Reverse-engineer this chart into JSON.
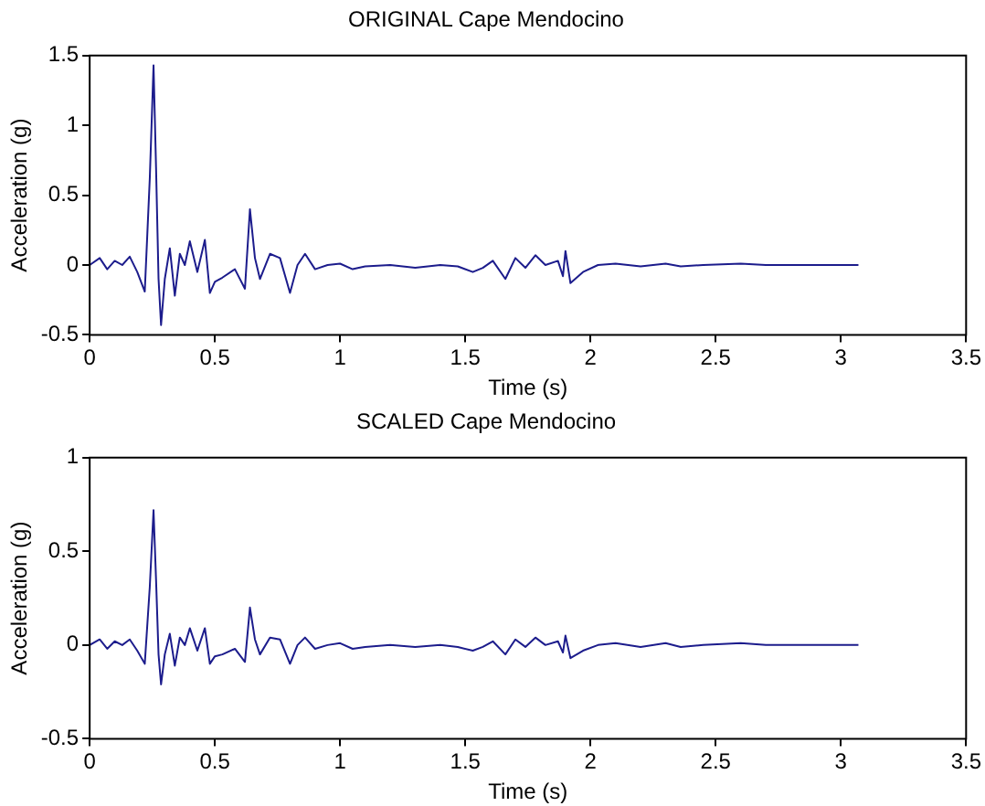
{
  "chart_data": [
    {
      "type": "line",
      "title": "ORIGINAL Cape Mendocino",
      "xlabel": "Time (s)",
      "ylabel": "Acceleration (g)",
      "xlim": [
        0,
        3.5
      ],
      "xticks": [
        0,
        0.5,
        1,
        1.5,
        2,
        2.5,
        3,
        3.5
      ],
      "ylim": [
        -0.5,
        1.5
      ],
      "yticks": [
        -0.5,
        0,
        0.5,
        1,
        1.5
      ],
      "marker": "none",
      "x": [
        0,
        0.04,
        0.07,
        0.1,
        0.13,
        0.16,
        0.19,
        0.22,
        0.24,
        0.255,
        0.265,
        0.275,
        0.285,
        0.3,
        0.32,
        0.34,
        0.36,
        0.38,
        0.4,
        0.43,
        0.46,
        0.48,
        0.5,
        0.53,
        0.58,
        0.62,
        0.64,
        0.66,
        0.68,
        0.72,
        0.76,
        0.8,
        0.83,
        0.86,
        0.9,
        0.95,
        1.0,
        1.05,
        1.1,
        1.2,
        1.3,
        1.4,
        1.47,
        1.53,
        1.57,
        1.61,
        1.66,
        1.7,
        1.74,
        1.78,
        1.82,
        1.87,
        1.89,
        1.9,
        1.92,
        1.97,
        2.03,
        2.1,
        2.2,
        2.3,
        2.36,
        2.45,
        2.6,
        2.7,
        2.8,
        3.07
      ],
      "series": [
        {
          "color": "#1c1c8c",
          "values": [
            0,
            0.05,
            -0.03,
            0.03,
            0,
            0.06,
            -0.05,
            -0.19,
            0.62,
            1.43,
            0.7,
            -0.1,
            -0.43,
            -0.1,
            0.12,
            -0.22,
            0.08,
            0,
            0.17,
            -0.05,
            0.18,
            -0.2,
            -0.12,
            -0.09,
            -0.03,
            -0.17,
            0.4,
            0.05,
            -0.1,
            0.08,
            0.05,
            -0.2,
            0,
            0.08,
            -0.03,
            0,
            0.01,
            -0.03,
            -0.01,
            0,
            -0.02,
            0,
            -0.01,
            -0.05,
            -0.02,
            0.03,
            -0.1,
            0.05,
            -0.02,
            0.07,
            0,
            0.03,
            -0.08,
            0.1,
            -0.13,
            -0.05,
            0,
            0.01,
            -0.01,
            0.01,
            -0.01,
            0,
            0.01,
            0,
            0,
            0
          ]
        }
      ]
    },
    {
      "type": "line",
      "title": "SCALED Cape Mendocino",
      "xlabel": "Time (s)",
      "ylabel": "Acceleration (g)",
      "xlim": [
        0,
        3.5
      ],
      "xticks": [
        0,
        0.5,
        1,
        1.5,
        2,
        2.5,
        3,
        3.5
      ],
      "ylim": [
        -0.5,
        1
      ],
      "yticks": [
        -0.5,
        0,
        0.5,
        1
      ],
      "marker": "none",
      "x": [
        0,
        0.04,
        0.07,
        0.1,
        0.13,
        0.16,
        0.19,
        0.22,
        0.24,
        0.255,
        0.265,
        0.275,
        0.285,
        0.3,
        0.32,
        0.34,
        0.36,
        0.38,
        0.4,
        0.43,
        0.46,
        0.48,
        0.5,
        0.53,
        0.58,
        0.62,
        0.64,
        0.66,
        0.68,
        0.72,
        0.76,
        0.8,
        0.83,
        0.86,
        0.9,
        0.95,
        1.0,
        1.05,
        1.1,
        1.2,
        1.3,
        1.4,
        1.47,
        1.53,
        1.57,
        1.61,
        1.66,
        1.7,
        1.74,
        1.78,
        1.82,
        1.87,
        1.89,
        1.9,
        1.92,
        1.97,
        2.03,
        2.1,
        2.2,
        2.3,
        2.36,
        2.45,
        2.6,
        2.7,
        2.8,
        3.07
      ],
      "series": [
        {
          "color": "#1c1c8c",
          "values": [
            0,
            0.03,
            -0.02,
            0.02,
            0,
            0.03,
            -0.03,
            -0.1,
            0.31,
            0.72,
            0.35,
            -0.05,
            -0.21,
            -0.05,
            0.06,
            -0.11,
            0.04,
            0,
            0.09,
            -0.03,
            0.09,
            -0.1,
            -0.06,
            -0.05,
            -0.02,
            -0.09,
            0.2,
            0.03,
            -0.05,
            0.04,
            0.03,
            -0.1,
            0,
            0.04,
            -0.02,
            0,
            0.01,
            -0.02,
            -0.01,
            0,
            -0.01,
            0,
            -0.01,
            -0.03,
            -0.01,
            0.02,
            -0.05,
            0.03,
            -0.01,
            0.04,
            0,
            0.02,
            -0.04,
            0.05,
            -0.07,
            -0.03,
            0,
            0.01,
            -0.01,
            0.01,
            -0.01,
            0,
            0.01,
            0,
            0,
            0
          ]
        }
      ]
    }
  ]
}
